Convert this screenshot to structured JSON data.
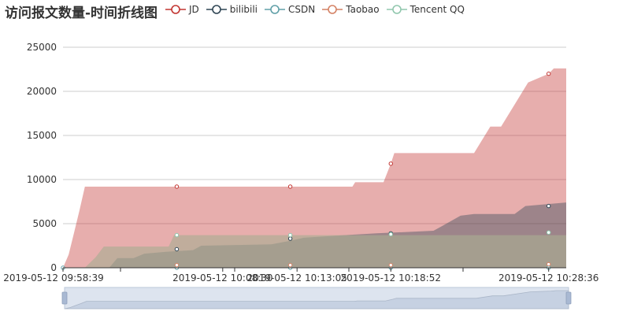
{
  "chart_data": {
    "type": "area",
    "title": "访问报文数量-时间折线图",
    "x_tick_labels": [
      "2019-05-12 09:58:39",
      "2019-05-12 10:08:30",
      "2019-05-12 10:13:05",
      "2019-05-12 10:18:52",
      "2019-05-12 10:28:36"
    ],
    "y_ticks": [
      0,
      5000,
      10000,
      15000,
      20000,
      25000
    ],
    "ylim": [
      0,
      25000
    ],
    "x_range": [
      "2019-05-12 09:58:39",
      "2019-05-12 10:29:41"
    ],
    "stacked": false,
    "grid": true,
    "legend": "top-center",
    "datazoom_slider": true,
    "series": [
      {
        "name": "JD",
        "color": "#c23531",
        "points": [
          [
            "2019-05-12 09:58:39",
            0
          ],
          [
            "2019-05-12 09:59:00",
            1500
          ],
          [
            "2019-05-12 09:59:20",
            4000
          ],
          [
            "2019-05-12 09:59:40",
            6500
          ],
          [
            "2019-05-12 10:00:00",
            9200
          ],
          [
            "2019-05-12 10:16:30",
            9200
          ],
          [
            "2019-05-12 10:16:40",
            9700
          ],
          [
            "2019-05-12 10:18:25",
            9700
          ],
          [
            "2019-05-12 10:18:52",
            11800
          ],
          [
            "2019-05-12 10:19:05",
            13000
          ],
          [
            "2019-05-12 10:24:00",
            13000
          ],
          [
            "2019-05-12 10:25:00",
            16000
          ],
          [
            "2019-05-12 10:25:40",
            16000
          ],
          [
            "2019-05-12 10:27:20",
            21000
          ],
          [
            "2019-05-12 10:28:36",
            22000
          ],
          [
            "2019-05-12 10:28:55",
            22600
          ],
          [
            "2019-05-12 10:29:41",
            22600
          ]
        ],
        "markers": [
          [
            "2019-05-12 10:05:40",
            9200
          ],
          [
            "2019-05-12 10:12:40",
            9200
          ],
          [
            "2019-05-12 10:18:52",
            11800
          ],
          [
            "2019-05-12 10:28:36",
            22000
          ]
        ]
      },
      {
        "name": "bilibili",
        "color": "#2f4554",
        "points": [
          [
            "2019-05-12 09:58:39",
            0
          ],
          [
            "2019-05-12 10:01:30",
            0
          ],
          [
            "2019-05-12 10:02:00",
            1100
          ],
          [
            "2019-05-12 10:03:00",
            1100
          ],
          [
            "2019-05-12 10:03:40",
            1600
          ],
          [
            "2019-05-12 10:05:00",
            1800
          ],
          [
            "2019-05-12 10:06:40",
            2000
          ],
          [
            "2019-05-12 10:07:10",
            2500
          ],
          [
            "2019-05-12 10:10:00",
            2600
          ],
          [
            "2019-05-12 10:11:30",
            2650
          ],
          [
            "2019-05-12 10:12:30",
            3000
          ],
          [
            "2019-05-12 10:13:30",
            3400
          ],
          [
            "2019-05-12 10:16:00",
            3700
          ],
          [
            "2019-05-12 10:18:00",
            3900
          ],
          [
            "2019-05-12 10:21:30",
            4200
          ],
          [
            "2019-05-12 10:22:00",
            4700
          ],
          [
            "2019-05-12 10:23:10",
            5900
          ],
          [
            "2019-05-12 10:24:00",
            6100
          ],
          [
            "2019-05-12 10:26:30",
            6100
          ],
          [
            "2019-05-12 10:27:10",
            7000
          ],
          [
            "2019-05-12 10:29:41",
            7400
          ]
        ],
        "markers": [
          [
            "2019-05-12 10:05:40",
            2100
          ],
          [
            "2019-05-12 10:12:40",
            3300
          ],
          [
            "2019-05-12 10:18:52",
            3900
          ],
          [
            "2019-05-12 10:28:36",
            7000
          ]
        ]
      },
      {
        "name": "CSDN",
        "color": "#61a0a8",
        "points": [
          [
            "2019-05-12 09:58:39",
            0
          ],
          [
            "2019-05-12 10:29:41",
            0
          ]
        ],
        "markers": [
          [
            "2019-05-12 09:58:39",
            0
          ],
          [
            "2019-05-12 10:05:40",
            0
          ],
          [
            "2019-05-12 10:12:40",
            0
          ],
          [
            "2019-05-12 10:18:52",
            0
          ],
          [
            "2019-05-12 10:28:36",
            0
          ]
        ]
      },
      {
        "name": "Taobao",
        "color": "#d48265",
        "points": [
          [
            "2019-05-12 09:58:39",
            0
          ],
          [
            "2019-05-12 10:00:00",
            0
          ],
          [
            "2019-05-12 10:00:40",
            1200
          ],
          [
            "2019-05-12 10:01:10",
            2400
          ],
          [
            "2019-05-12 10:05:10",
            2400
          ],
          [
            "2019-05-12 10:05:30",
            3700
          ],
          [
            "2019-05-12 10:29:41",
            3700
          ]
        ],
        "markers": [
          [
            "2019-05-12 10:05:40",
            300
          ],
          [
            "2019-05-12 10:12:40",
            300
          ],
          [
            "2019-05-12 10:18:52",
            300
          ],
          [
            "2019-05-12 10:28:36",
            400
          ]
        ]
      },
      {
        "name": "Tencent QQ",
        "color": "#91c7ae",
        "points": [
          [
            "2019-05-12 09:58:39",
            0
          ],
          [
            "2019-05-12 10:00:00",
            0
          ],
          [
            "2019-05-12 10:00:40",
            1200
          ],
          [
            "2019-05-12 10:01:10",
            2400
          ],
          [
            "2019-05-12 10:05:10",
            2400
          ],
          [
            "2019-05-12 10:05:30",
            3700
          ],
          [
            "2019-05-12 10:29:41",
            3700
          ]
        ],
        "markers": [
          [
            "2019-05-12 10:05:40",
            3700
          ],
          [
            "2019-05-12 10:12:40",
            3700
          ],
          [
            "2019-05-12 10:18:52",
            3800
          ],
          [
            "2019-05-12 10:28:36",
            4000
          ]
        ]
      }
    ]
  }
}
